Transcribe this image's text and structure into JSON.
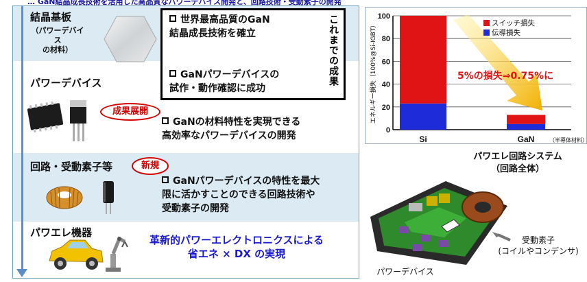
{
  "banner": "… GaN結晶成長技術を活用した高品質なパワーデバイス開発と、回路技術・受動素子の開発",
  "stages": {
    "crystal": {
      "title": "結晶基板",
      "sub": "（パワーデバイス\nの材料）"
    },
    "device": {
      "title": "パワーデバイス"
    },
    "circuit": {
      "title": "回路・受動素子等"
    },
    "equipment": {
      "title": "パワエレ機器"
    }
  },
  "results_box": {
    "item1": "世界最高品質のGaN\n結晶成長技術を確立",
    "item2": "GaNパワーデバイスの\n試作・動作確認に成功",
    "vertical_label": "これまでの成果"
  },
  "badges": {
    "expansion": "成果展開",
    "new": "新規"
  },
  "developments": {
    "device_dev": "GaNの材料特性を実現できる\n高効率なパワーデバイスの開発",
    "circuit_dev": "GaNパワーデバイスの特性を最大\n限に活かすことのできる回路技術や\n受動素子の開発"
  },
  "final": "革新的パワーエレクトロニクスによる\n省エネ × DX の実現",
  "chart_data": {
    "type": "bar",
    "stacked": true,
    "categories": [
      "Si",
      "GaN"
    ],
    "series": [
      {
        "name": "伝導損失",
        "values": [
          23,
          5
        ],
        "color": "#1e2bd8"
      },
      {
        "name": "スイッチ損失",
        "values": [
          77,
          8
        ],
        "color": "#e01414"
      }
    ],
    "ylabel": "エネルギー損失（100%@Si-IGBT）",
    "ylim": [
      0,
      100
    ],
    "yticks": [
      0,
      20,
      40,
      60,
      80,
      100
    ],
    "grid": true,
    "legend": "top-right",
    "annotation": "5%の損失⇒0.75%に",
    "category_note": "（半導体材料）",
    "accent": "#e01414"
  },
  "system": {
    "title": "パワエレ回路システム\n（回路全体）",
    "passive": "受動素子\n(コイルやコンデンサ)",
    "device": "パワーデバイス"
  }
}
